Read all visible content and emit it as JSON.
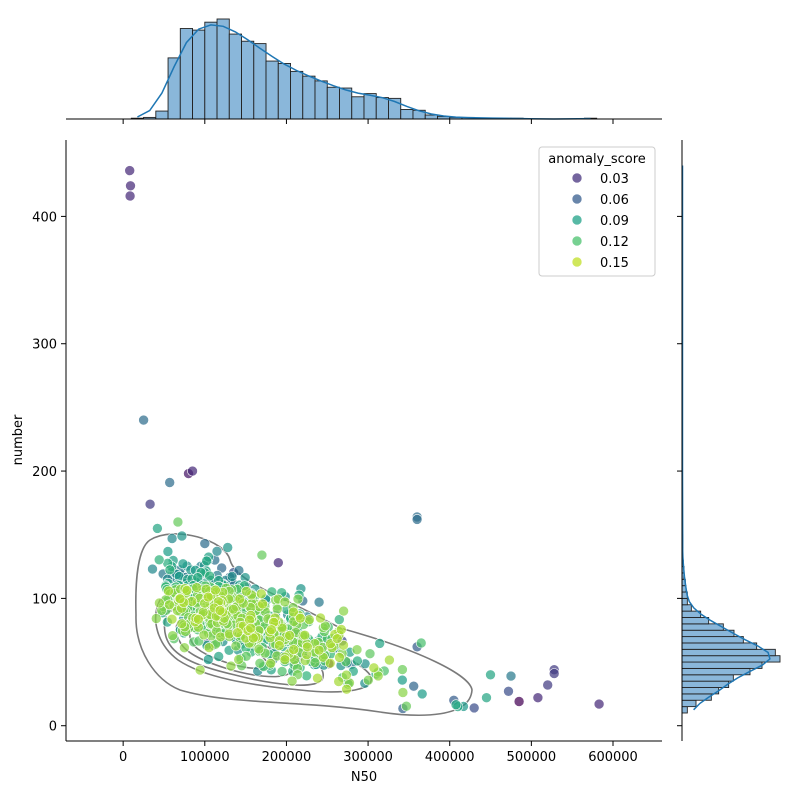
{
  "chart_data": {
    "type": "scatter",
    "title": "",
    "xlabel": "N50",
    "ylabel": "number",
    "xlim": [
      -70000,
      660000
    ],
    "ylim": [
      -12,
      460
    ],
    "x_ticks": [
      0,
      100000,
      200000,
      300000,
      400000,
      500000,
      600000
    ],
    "y_ticks": [
      0,
      100,
      200,
      300,
      400
    ],
    "grid": false,
    "legend": {
      "title": "anomaly_score",
      "placement": "top-right",
      "entries": [
        {
          "label": "0.03",
          "color": "#46327e"
        },
        {
          "label": "0.06",
          "color": "#365c8d"
        },
        {
          "label": "0.09",
          "color": "#1fa187"
        },
        {
          "label": "0.12",
          "color": "#4ac16d"
        },
        {
          "label": "0.15",
          "color": "#c0df25"
        }
      ]
    },
    "colormap": "viridis",
    "color_range": [
      0.0,
      0.17
    ],
    "series": [
      {
        "values": [
          {
            "x": 8000,
            "y": 436,
            "c": 0.02
          },
          {
            "x": 9000,
            "y": 424,
            "c": 0.02
          },
          {
            "x": 8500,
            "y": 416,
            "c": 0.02
          },
          {
            "x": 25000,
            "y": 240,
            "c": 0.06
          },
          {
            "x": 85000,
            "y": 200,
            "c": 0.02
          },
          {
            "x": 80000,
            "y": 198,
            "c": 0.01
          },
          {
            "x": 57000,
            "y": 191,
            "c": 0.06
          },
          {
            "x": 33000,
            "y": 174,
            "c": 0.03
          },
          {
            "x": 360000,
            "y": 164,
            "c": 0.06
          },
          {
            "x": 360000,
            "y": 162,
            "c": 0.06
          },
          {
            "x": 67000,
            "y": 160,
            "c": 0.13
          },
          {
            "x": 42000,
            "y": 155,
            "c": 0.1
          },
          {
            "x": 60000,
            "y": 147,
            "c": 0.08
          },
          {
            "x": 72000,
            "y": 149,
            "c": 0.09
          },
          {
            "x": 100000,
            "y": 143,
            "c": 0.06
          },
          {
            "x": 128000,
            "y": 140,
            "c": 0.09
          },
          {
            "x": 115000,
            "y": 137,
            "c": 0.08
          },
          {
            "x": 170000,
            "y": 134,
            "c": 0.13
          },
          {
            "x": 190000,
            "y": 128,
            "c": 0.02
          },
          {
            "x": 36000,
            "y": 123,
            "c": 0.08
          },
          {
            "x": 240000,
            "y": 97,
            "c": 0.07
          },
          {
            "x": 270000,
            "y": 90,
            "c": 0.14
          },
          {
            "x": 220000,
            "y": 98,
            "c": 0.06
          },
          {
            "x": 365000,
            "y": 65,
            "c": 0.12
          },
          {
            "x": 360000,
            "y": 62,
            "c": 0.05
          },
          {
            "x": 450000,
            "y": 40,
            "c": 0.1
          },
          {
            "x": 475000,
            "y": 39,
            "c": 0.07
          },
          {
            "x": 528000,
            "y": 44,
            "c": 0.03
          },
          {
            "x": 528000,
            "y": 41,
            "c": 0.03
          },
          {
            "x": 520000,
            "y": 32,
            "c": 0.03
          },
          {
            "x": 472000,
            "y": 27,
            "c": 0.04
          },
          {
            "x": 485000,
            "y": 19,
            "c": 0.0
          },
          {
            "x": 508000,
            "y": 22,
            "c": 0.02
          },
          {
            "x": 583000,
            "y": 17,
            "c": 0.02
          },
          {
            "x": 445000,
            "y": 22,
            "c": 0.1
          },
          {
            "x": 430000,
            "y": 14,
            "c": 0.04
          },
          {
            "x": 405000,
            "y": 20,
            "c": 0.05
          },
          {
            "x": 410000,
            "y": 15,
            "c": 0.1
          }
        ]
      }
    ],
    "marginal_x": {
      "type": "histogram",
      "bin_edges": [
        10000,
        25000,
        40000,
        55000,
        70000,
        85000,
        100000,
        115000,
        130000,
        145000,
        160000,
        175000,
        190000,
        205000,
        220000,
        235000,
        250000,
        265000,
        280000,
        295000,
        310000,
        325000,
        340000,
        355000,
        370000,
        385000,
        400000,
        415000,
        430000,
        445000,
        460000,
        475000,
        490000,
        505000,
        520000,
        535000,
        550000,
        565000,
        580000
      ],
      "counts": [
        1,
        2,
        10,
        77,
        114,
        112,
        122,
        126,
        107,
        98,
        95,
        73,
        70,
        60,
        54,
        48,
        40,
        39,
        28,
        32,
        27,
        26,
        12,
        11,
        5,
        3,
        2,
        2,
        1,
        1,
        1,
        1,
        0,
        0,
        0,
        0,
        0,
        1
      ],
      "kde": true
    },
    "marginal_y": {
      "type": "histogram",
      "bin_edges": [
        10,
        15,
        20,
        25,
        30,
        35,
        40,
        45,
        50,
        55,
        60,
        65,
        70,
        75,
        80,
        85,
        90,
        95,
        100,
        105,
        110,
        115,
        120,
        125,
        130,
        135,
        140,
        145,
        150
      ],
      "counts": [
        8,
        21,
        44,
        55,
        70,
        77,
        102,
        120,
        147,
        140,
        112,
        92,
        78,
        62,
        40,
        28,
        14,
        8,
        8,
        6,
        5,
        3,
        3,
        2,
        1,
        1,
        1,
        1
      ],
      "kde": true
    }
  }
}
